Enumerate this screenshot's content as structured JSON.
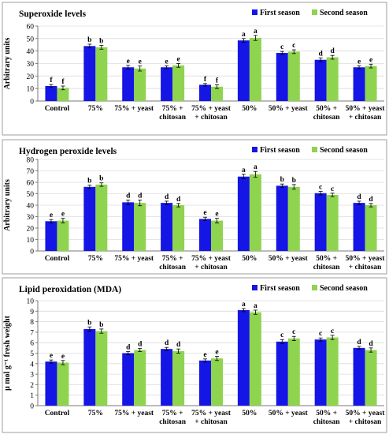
{
  "colors": {
    "first": "#1515e6",
    "second": "#8fd44e",
    "panel_border": "#9e9e9e",
    "axis": "#7a7a7a",
    "grid": "#dcdcdc"
  },
  "chart_data": [
    {
      "type": "bar",
      "title": "Superoxide levels",
      "ylabel": "Arbitrary units",
      "xlabel": "",
      "ylim": [
        0,
        60
      ],
      "yticks": [
        0,
        10,
        20,
        30,
        40,
        50,
        60
      ],
      "grid": true,
      "legend": "top-right",
      "categories": [
        "Control",
        "75%",
        "75% + yeast",
        "75% +\nchitosan",
        "75% + yeast\n+ chitosan",
        "50%",
        "50% + yeast",
        "50% +\nchitosan",
        "50% + yeast\n+ chitosan"
      ],
      "series": [
        {
          "name": "First season",
          "values": [
            12,
            44,
            27,
            27,
            13,
            48.5,
            38.5,
            33,
            27
          ],
          "errors": [
            1.2,
            1.5,
            1.5,
            1.2,
            1,
            1.5,
            1.2,
            1.5,
            1.2
          ],
          "labels": [
            "f",
            "b",
            "e",
            "e",
            "f",
            "a",
            "c",
            "d",
            "e"
          ]
        },
        {
          "name": "Second season",
          "values": [
            10.5,
            43,
            26,
            28.5,
            11.5,
            50.5,
            39.5,
            35,
            28
          ],
          "errors": [
            1.5,
            1.5,
            2,
            1.5,
            1.5,
            2,
            1.5,
            1.5,
            1.5
          ],
          "labels": [
            "f",
            "b",
            "e",
            "e",
            "f",
            "a",
            "c",
            "d",
            "e"
          ]
        }
      ]
    },
    {
      "type": "bar",
      "title": "Hydrogen peroxide levels",
      "ylabel": "Arbitrary units",
      "xlabel": "",
      "ylim": [
        0,
        80
      ],
      "yticks": [
        0,
        10,
        20,
        30,
        40,
        50,
        60,
        70,
        80
      ],
      "grid": true,
      "legend": "top-right",
      "categories": [
        "Control",
        "75%",
        "75% + yeast",
        "75% +\nchitosan",
        "75% + yeast\n+ chitosan",
        "50%",
        "50% + yeast",
        "50% +\nchitosan",
        "50% + yeast\n+ chitosan"
      ],
      "series": [
        {
          "name": "First season",
          "values": [
            26,
            56,
            42.5,
            42,
            28,
            65,
            57,
            50.5,
            42
          ],
          "errors": [
            1.5,
            1.5,
            2,
            1.5,
            1.5,
            2,
            1.5,
            1.5,
            1.5
          ],
          "labels": [
            "e",
            "b",
            "d",
            "d",
            "e",
            "a",
            "b",
            "c",
            "d"
          ]
        },
        {
          "name": "Second season",
          "values": [
            26.5,
            58,
            42,
            40,
            26.5,
            67,
            56,
            49,
            40
          ],
          "errors": [
            2,
            1.5,
            2.5,
            1.5,
            2,
            2.5,
            2,
            1.5,
            1.5
          ],
          "labels": [
            "e",
            "b",
            "d",
            "d",
            "e",
            "a",
            "b",
            "c",
            "d"
          ]
        }
      ]
    },
    {
      "type": "bar",
      "title": "Lipid peroxidation (MDA)",
      "ylabel": "μ mol g⁻¹ fresh weight",
      "xlabel": "",
      "ylim": [
        0,
        10
      ],
      "yticks": [
        0,
        1,
        2,
        3,
        4,
        5,
        6,
        7,
        8,
        9,
        10
      ],
      "grid": true,
      "legend": "top-right",
      "categories": [
        "Control",
        "75%",
        "75% + yeast",
        "75% +\nchitosan",
        "75% + yeast\n+ chitosan",
        "50%",
        "50% + yeast",
        "50% +\nchitosan",
        "50% + yeast\n+ chitosan"
      ],
      "series": [
        {
          "name": "First season",
          "values": [
            4.2,
            7.3,
            5.0,
            5.4,
            4.3,
            9.1,
            6.1,
            6.3,
            5.5
          ],
          "errors": [
            0.15,
            0.2,
            0.15,
            0.15,
            0.15,
            0.15,
            0.2,
            0.15,
            0.15
          ],
          "labels": [
            "e",
            "b",
            "d",
            "d",
            "e",
            "a",
            "c",
            "c",
            "d"
          ]
        },
        {
          "name": "Second season",
          "values": [
            4.1,
            7.1,
            5.3,
            5.2,
            4.5,
            8.9,
            6.4,
            6.5,
            5.3
          ],
          "errors": [
            0.2,
            0.2,
            0.15,
            0.2,
            0.2,
            0.2,
            0.2,
            0.2,
            0.2
          ],
          "labels": [
            "e",
            "b",
            "d",
            "d",
            "e",
            "a",
            "c",
            "c",
            "d"
          ]
        }
      ]
    }
  ]
}
